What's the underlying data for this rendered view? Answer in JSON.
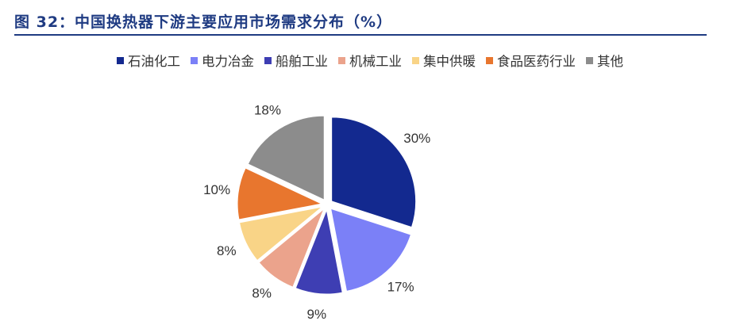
{
  "title": "图 32：中国换热器下游主要应用市场需求分布（%）",
  "chart_data": {
    "type": "pie",
    "categories": [
      "石油化工",
      "电力冶金",
      "船舶工业",
      "机械工业",
      "集中供暖",
      "食品医药行业",
      "其他"
    ],
    "values": [
      30,
      17,
      9,
      8,
      8,
      10,
      18
    ],
    "labels": [
      "30%",
      "17%",
      "9%",
      "8%",
      "8%",
      "10%",
      "18%"
    ],
    "colors": [
      "#13298f",
      "#7b80f7",
      "#3e3eb3",
      "#eba38c",
      "#f9d487",
      "#e8762e",
      "#8c8c8c"
    ],
    "start": "12 o'clock",
    "direction": "clockwise",
    "exploded": true,
    "legend": "top"
  }
}
